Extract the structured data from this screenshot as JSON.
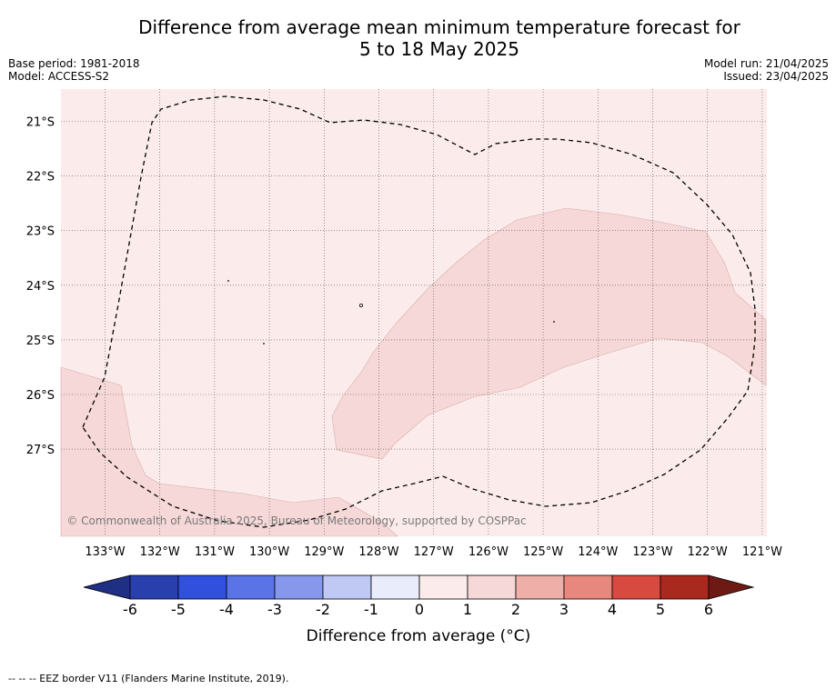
{
  "title": {
    "line1": "Difference from average mean minimum temperature forecast for",
    "line2": "5 to 18 May 2025"
  },
  "meta": {
    "base_period": "Base period: 1981-2018",
    "model": "Model: ACCESS-S2",
    "model_run": "Model run: 21/04/2025",
    "issued": "Issued: 23/04/2025"
  },
  "map": {
    "background_category": "0 to 1",
    "shaded_category": "1 to 2",
    "colors": {
      "cat_0_1": "#fbeceb",
      "cat_1_2": "#f5d8d7",
      "border": "#000000"
    },
    "lat_labels": [
      "21°S",
      "22°S",
      "23°S",
      "24°S",
      "25°S",
      "26°S",
      "27°S"
    ],
    "lon_labels": [
      "133°W",
      "132°W",
      "131°W",
      "130°W",
      "129°W",
      "128°W",
      "127°W",
      "126°W",
      "125°W",
      "124°W",
      "123°W",
      "122°W",
      "121°W"
    ],
    "watermark": "© Commonwealth of Australia 2025, Bureau of Meteorology, supported by COSPPac"
  },
  "colorbar": {
    "label": "Difference from average (°C)",
    "ticks": [
      "-6",
      "-5",
      "-4",
      "-3",
      "-2",
      "-1",
      "0",
      "1",
      "2",
      "3",
      "4",
      "5",
      "6"
    ],
    "colors": [
      "#1f2f84",
      "#2a3fae",
      "#3050dd",
      "#5a73e6",
      "#8798ec",
      "#c0c8f4",
      "#e9ecfb",
      "#fbeceb",
      "#f5d8d7",
      "#eeafa9",
      "#e8877e",
      "#d84a40",
      "#a9291f",
      "#6e1a14"
    ]
  },
  "footer": {
    "legend": "--  --  -- EEZ border V11 (Flanders Marine Institute, 2019)."
  }
}
